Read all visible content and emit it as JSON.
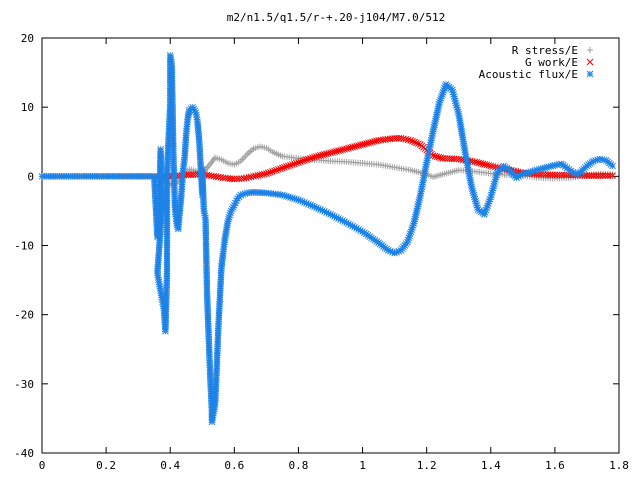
{
  "chart_data": {
    "type": "scatter",
    "title": "m2/n1.5/q1.5/r-+.20-j104/M7.0/512",
    "xlabel": "",
    "ylabel": "",
    "xlim": [
      0,
      1.8
    ],
    "ylim": [
      -40,
      20
    ],
    "x_ticks": [
      "0",
      "0.2",
      "0.4",
      "0.6",
      "0.8",
      "1",
      "1.2",
      "1.4",
      "1.6",
      "1.8"
    ],
    "y_ticks": [
      "20",
      "10",
      "0",
      "-10",
      "-20",
      "-30",
      "-40"
    ],
    "grid": false,
    "legend_position": "top-right",
    "series": [
      {
        "name": "R stress/E",
        "marker": "plus",
        "color": "#a0a0a0",
        "points": [
          [
            0.0,
            0
          ],
          [
            0.36,
            0
          ],
          [
            0.38,
            -0.8
          ],
          [
            0.4,
            -1.2
          ],
          [
            0.42,
            -1.0
          ],
          [
            0.44,
            0
          ],
          [
            0.46,
            1.0
          ],
          [
            0.48,
            0.8
          ],
          [
            0.5,
            0.4
          ],
          [
            0.52,
            1.5
          ],
          [
            0.54,
            2.7
          ],
          [
            0.56,
            2.4
          ],
          [
            0.58,
            1.9
          ],
          [
            0.6,
            1.7
          ],
          [
            0.62,
            2.2
          ],
          [
            0.64,
            3.2
          ],
          [
            0.66,
            4.0
          ],
          [
            0.68,
            4.3
          ],
          [
            0.7,
            4.1
          ],
          [
            0.72,
            3.5
          ],
          [
            0.75,
            2.9
          ],
          [
            0.8,
            2.6
          ],
          [
            0.85,
            2.4
          ],
          [
            0.9,
            2.2
          ],
          [
            0.95,
            2.1
          ],
          [
            1.0,
            1.9
          ],
          [
            1.05,
            1.7
          ],
          [
            1.1,
            1.3
          ],
          [
            1.15,
            0.9
          ],
          [
            1.2,
            0.3
          ],
          [
            1.22,
            -0.1
          ],
          [
            1.25,
            0.3
          ],
          [
            1.3,
            0.9
          ],
          [
            1.35,
            0.7
          ],
          [
            1.4,
            0.4
          ],
          [
            1.45,
            0.2
          ],
          [
            1.5,
            0.1
          ],
          [
            1.55,
            -0.2
          ],
          [
            1.6,
            -0.3
          ],
          [
            1.65,
            -0.2
          ],
          [
            1.7,
            0.2
          ],
          [
            1.75,
            0.4
          ],
          [
            1.78,
            0.3
          ]
        ]
      },
      {
        "name": "G work/E",
        "marker": "cross",
        "color": "#ee0000",
        "points": [
          [
            0.36,
            0
          ],
          [
            0.4,
            0
          ],
          [
            0.45,
            0.2
          ],
          [
            0.5,
            0.3
          ],
          [
            0.55,
            -0.1
          ],
          [
            0.58,
            -0.3
          ],
          [
            0.6,
            -0.4
          ],
          [
            0.63,
            -0.3
          ],
          [
            0.66,
            0
          ],
          [
            0.7,
            0.4
          ],
          [
            0.75,
            1.2
          ],
          [
            0.8,
            2.0
          ],
          [
            0.85,
            2.8
          ],
          [
            0.9,
            3.4
          ],
          [
            0.95,
            4.0
          ],
          [
            1.0,
            4.6
          ],
          [
            1.05,
            5.2
          ],
          [
            1.1,
            5.5
          ],
          [
            1.12,
            5.5
          ],
          [
            1.15,
            5.2
          ],
          [
            1.18,
            4.6
          ],
          [
            1.2,
            3.8
          ],
          [
            1.22,
            3.0
          ],
          [
            1.25,
            2.6
          ],
          [
            1.3,
            2.5
          ],
          [
            1.35,
            2.1
          ],
          [
            1.4,
            1.5
          ],
          [
            1.45,
            1.0
          ],
          [
            1.5,
            0.5
          ],
          [
            1.55,
            0.3
          ],
          [
            1.6,
            0.2
          ],
          [
            1.65,
            0.2
          ],
          [
            1.7,
            0.1
          ],
          [
            1.75,
            0.1
          ],
          [
            1.78,
            0.1
          ]
        ]
      },
      {
        "name": "Acoustic flux/E",
        "marker": "star",
        "color": "#1e82e6",
        "points": [
          [
            0.0,
            0
          ],
          [
            0.35,
            0
          ],
          [
            0.36,
            -8.8
          ],
          [
            0.365,
            -5.4
          ],
          [
            0.37,
            3.9
          ],
          [
            0.375,
            -4.3
          ],
          [
            0.36,
            -14.0
          ],
          [
            0.38,
            -19.1
          ],
          [
            0.385,
            -22.4
          ],
          [
            0.39,
            -14.1
          ],
          [
            0.39,
            0.6
          ],
          [
            0.4,
            10.4
          ],
          [
            0.4,
            17.5
          ],
          [
            0.405,
            16.0
          ],
          [
            0.41,
            2.8
          ],
          [
            0.415,
            -4.8
          ],
          [
            0.42,
            -6.8
          ],
          [
            0.425,
            -7.6
          ],
          [
            0.43,
            -5.0
          ],
          [
            0.435,
            -2.5
          ],
          [
            0.44,
            0.8
          ],
          [
            0.445,
            2.7
          ],
          [
            0.45,
            6.2
          ],
          [
            0.455,
            8.5
          ],
          [
            0.46,
            9.6
          ],
          [
            0.47,
            10.0
          ],
          [
            0.48,
            9.2
          ],
          [
            0.485,
            7.9
          ],
          [
            0.49,
            5.5
          ],
          [
            0.495,
            1.5
          ],
          [
            0.5,
            -2.6
          ],
          [
            0.5,
            1.0
          ],
          [
            0.505,
            -5.0
          ],
          [
            0.51,
            -6.0
          ],
          [
            0.515,
            -17.0
          ],
          [
            0.52,
            -23.2
          ],
          [
            0.525,
            -29.2
          ],
          [
            0.53,
            -34.0
          ],
          [
            0.53,
            -35.5
          ],
          [
            0.54,
            -33.0
          ],
          [
            0.545,
            -27.8
          ],
          [
            0.55,
            -22.0
          ],
          [
            0.555,
            -17.5
          ],
          [
            0.56,
            -13.0
          ],
          [
            0.565,
            -11.2
          ],
          [
            0.57,
            -9.2
          ],
          [
            0.58,
            -6.5
          ],
          [
            0.59,
            -5.0
          ],
          [
            0.6,
            -4.2
          ],
          [
            0.61,
            -3.2
          ],
          [
            0.62,
            -2.7
          ],
          [
            0.64,
            -2.4
          ],
          [
            0.66,
            -2.3
          ],
          [
            0.7,
            -2.4
          ],
          [
            0.75,
            -2.7
          ],
          [
            0.8,
            -3.4
          ],
          [
            0.85,
            -4.4
          ],
          [
            0.9,
            -5.5
          ],
          [
            0.95,
            -6.7
          ],
          [
            1.0,
            -8.0
          ],
          [
            1.05,
            -9.6
          ],
          [
            1.08,
            -10.7
          ],
          [
            1.1,
            -11.1
          ],
          [
            1.12,
            -10.7
          ],
          [
            1.14,
            -9.5
          ],
          [
            1.16,
            -6.8
          ],
          [
            1.18,
            -2.8
          ],
          [
            1.2,
            2.0
          ],
          [
            1.22,
            6.5
          ],
          [
            1.24,
            10.7
          ],
          [
            1.26,
            13.3
          ],
          [
            1.28,
            12.5
          ],
          [
            1.3,
            9.0
          ],
          [
            1.32,
            3.5
          ],
          [
            1.34,
            -1.5
          ],
          [
            1.36,
            -4.8
          ],
          [
            1.38,
            -5.5
          ],
          [
            1.4,
            -3.0
          ],
          [
            1.42,
            0.5
          ],
          [
            1.44,
            1.5
          ],
          [
            1.46,
            0.8
          ],
          [
            1.48,
            -0.2
          ],
          [
            1.5,
            0.3
          ],
          [
            1.55,
            1.0
          ],
          [
            1.6,
            1.6
          ],
          [
            1.62,
            1.8
          ],
          [
            1.65,
            0.8
          ],
          [
            1.67,
            0.2
          ],
          [
            1.7,
            1.5
          ],
          [
            1.72,
            2.2
          ],
          [
            1.74,
            2.5
          ],
          [
            1.76,
            2.3
          ],
          [
            1.78,
            1.5
          ]
        ]
      }
    ]
  }
}
